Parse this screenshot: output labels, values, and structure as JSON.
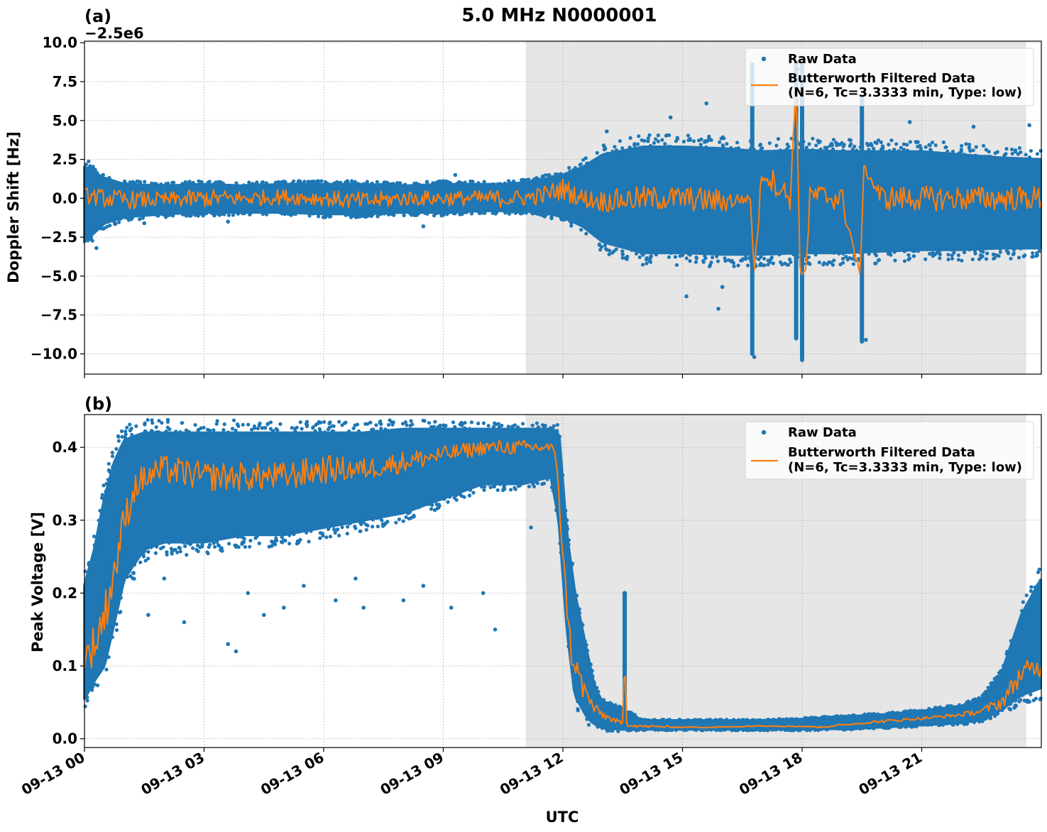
{
  "figure_title": "5.0 MHz N0000001",
  "xlabel": "UTC",
  "x_tick_labels": [
    "09-13 00",
    "09-13 03",
    "09-13 06",
    "09-13 09",
    "09-13 12",
    "09-13 15",
    "09-13 18",
    "09-13 21"
  ],
  "colors": {
    "raw": "#1f77b4",
    "filtered": "#ff7f0e",
    "shade": "#e6e6e6",
    "grid": "#b0b0b0"
  },
  "chart_data": [
    {
      "type": "scatter",
      "panel_label": "(a)",
      "ylabel": "Doppler Shift [Hz]",
      "offset_text": "−2.5e6",
      "x_unit": "hours since 09-13 00:00 UTC",
      "xlim": [
        0,
        24
      ],
      "ylim": [
        -11.3,
        10.1
      ],
      "y_ticks": [
        -10,
        -7.5,
        -5,
        -2.5,
        0,
        2.5,
        5,
        7.5,
        10
      ],
      "y_tick_labels": [
        "−10.0",
        "−7.5",
        "−5.0",
        "−2.5",
        "0.0",
        "2.5",
        "5.0",
        "7.5",
        "10.0"
      ],
      "x_tick_values": [
        0,
        3,
        6,
        9,
        12,
        15,
        18,
        21
      ],
      "grid": true,
      "shaded_region": [
        11.07,
        23.62
      ],
      "legend": {
        "position": "upper right",
        "entries": [
          "Raw Data",
          "Butterworth Filtered Data",
          "(N=6, Tc=3.3333 min, Type: low)"
        ]
      },
      "series": [
        {
          "name": "Raw Data",
          "kind": "band",
          "x": [
            0,
            0.5,
            1,
            2,
            3,
            4,
            5,
            6,
            7,
            8,
            9,
            10,
            10.5,
            11,
            11.5,
            12,
            12.5,
            13,
            14,
            15,
            16,
            17,
            18,
            19,
            20,
            21,
            22,
            23,
            24
          ],
          "upper": [
            2.0,
            1.3,
            0.9,
            0.8,
            0.9,
            0.8,
            0.9,
            0.9,
            0.9,
            0.8,
            0.9,
            0.9,
            0.9,
            1.0,
            1.2,
            1.5,
            2.0,
            2.8,
            3.3,
            3.3,
            3.2,
            3.0,
            3.1,
            3.0,
            3.0,
            3.0,
            2.8,
            2.6,
            2.5
          ],
          "lower": [
            -2.8,
            -1.6,
            -1.2,
            -1.0,
            -0.9,
            -0.9,
            -0.9,
            -1.0,
            -1.0,
            -0.9,
            -0.9,
            -0.8,
            -0.8,
            -0.8,
            -0.9,
            -1.2,
            -1.8,
            -2.8,
            -3.5,
            -3.5,
            -3.6,
            -3.6,
            -3.5,
            -3.5,
            -3.4,
            -3.3,
            -3.3,
            -3.2,
            -3.2
          ],
          "outliers": [
            [
              0.3,
              -3.2
            ],
            [
              1.5,
              -1.6
            ],
            [
              3.6,
              -1.5
            ],
            [
              8.5,
              -1.8
            ],
            [
              9.3,
              1.5
            ],
            [
              13.1,
              4.3
            ],
            [
              14.7,
              5.2
            ],
            [
              15.1,
              -6.3
            ],
            [
              15.6,
              6.1
            ],
            [
              16.0,
              -5.7
            ],
            [
              16.8,
              -10.2
            ],
            [
              17.9,
              8.3
            ],
            [
              18.0,
              -10.4
            ],
            [
              19.6,
              -9.1
            ],
            [
              20.7,
              4.9
            ],
            [
              22.3,
              4.6
            ],
            [
              23.7,
              4.7
            ],
            [
              13.5,
              -3.6
            ],
            [
              15.9,
              -7.1
            ]
          ],
          "spikes": [
            {
              "x": 16.75,
              "low": -10.0,
              "high": 8.6
            },
            {
              "x": 17.85,
              "low": -9.0,
              "high": 8.7
            },
            {
              "x": 18.0,
              "low": -10.3,
              "high": 8.8
            },
            {
              "x": 19.5,
              "low": -9.2,
              "high": 6.5
            }
          ]
        },
        {
          "name": "Butterworth Filtered Data",
          "kind": "line",
          "x": [
            0,
            0.5,
            1,
            2,
            3,
            4,
            5,
            6,
            7,
            8,
            9,
            10,
            10.5,
            11,
            11.5,
            12,
            12.5,
            13,
            14,
            15,
            16,
            16.7,
            16.8,
            17,
            17.7,
            17.85,
            17.95,
            18.1,
            18.2,
            19,
            19.45,
            19.55,
            20,
            21,
            22,
            23,
            24
          ],
          "y": [
            0.2,
            0.0,
            -0.1,
            -0.1,
            0.0,
            0.0,
            0.1,
            0.0,
            -0.2,
            0.0,
            0.0,
            0.0,
            0.0,
            0.0,
            0.2,
            0.6,
            0.0,
            -0.2,
            0.0,
            0.0,
            -0.2,
            0.0,
            -4.8,
            1.8,
            0.0,
            7.5,
            -4.8,
            -4.6,
            0.2,
            0.0,
            -5.0,
            2.0,
            0.0,
            0.0,
            0.0,
            0.0,
            0.0
          ],
          "noise_amplitude": [
            0.5,
            0.6,
            0.6,
            0.5,
            0.6,
            0.5,
            0.5,
            0.5,
            0.6,
            0.5,
            0.5,
            0.5,
            0.6,
            0.5,
            0.6,
            0.7,
            0.6,
            0.7,
            0.8,
            0.8,
            0.8,
            0.2,
            0.2,
            0.8,
            0.8,
            0.2,
            0.2,
            0.2,
            0.8,
            0.8,
            0.2,
            0.2,
            0.8,
            0.8,
            0.8,
            0.8,
            0.8
          ]
        }
      ]
    },
    {
      "type": "scatter",
      "panel_label": "(b)",
      "ylabel": "Peak Voltage [V]",
      "x_unit": "hours since 09-13 00:00 UTC",
      "xlim": [
        0,
        24
      ],
      "ylim": [
        -0.012,
        0.445
      ],
      "y_ticks": [
        0,
        0.1,
        0.2,
        0.3,
        0.4
      ],
      "y_tick_labels": [
        "0.0",
        "0.1",
        "0.2",
        "0.3",
        "0.4"
      ],
      "x_tick_values": [
        0,
        3,
        6,
        9,
        12,
        15,
        18,
        21
      ],
      "grid": true,
      "shaded_region": [
        11.07,
        23.62
      ],
      "legend": {
        "position": "upper right",
        "entries": [
          "Raw Data",
          "Butterworth Filtered Data",
          "(N=6, Tc=3.3333 min, Type: low)"
        ]
      },
      "series": [
        {
          "name": "Raw Data",
          "kind": "band",
          "x": [
            0,
            0.25,
            0.5,
            0.75,
            1,
            1.5,
            2,
            3,
            4,
            5,
            6,
            7,
            8,
            9,
            10,
            11,
            11.7,
            11.9,
            12.1,
            12.3,
            12.6,
            12.8,
            13,
            13.5,
            14,
            15,
            16,
            17,
            18,
            19,
            20,
            21,
            22,
            22.5,
            23,
            23.5,
            24
          ],
          "upper": [
            0.21,
            0.26,
            0.33,
            0.38,
            0.41,
            0.42,
            0.42,
            0.42,
            0.42,
            0.42,
            0.42,
            0.42,
            0.425,
            0.425,
            0.425,
            0.425,
            0.425,
            0.42,
            0.28,
            0.2,
            0.12,
            0.07,
            0.05,
            0.04,
            0.025,
            0.025,
            0.025,
            0.025,
            0.027,
            0.03,
            0.033,
            0.038,
            0.045,
            0.055,
            0.09,
            0.17,
            0.22
          ],
          "lower": [
            0.055,
            0.08,
            0.1,
            0.16,
            0.22,
            0.26,
            0.27,
            0.27,
            0.28,
            0.28,
            0.29,
            0.3,
            0.31,
            0.33,
            0.35,
            0.35,
            0.36,
            0.3,
            0.15,
            0.06,
            0.03,
            0.02,
            0.015,
            0.013,
            0.013,
            0.013,
            0.013,
            0.013,
            0.013,
            0.014,
            0.016,
            0.019,
            0.022,
            0.026,
            0.04,
            0.06,
            0.07
          ],
          "outliers": [
            [
              1.6,
              0.17
            ],
            [
              2.5,
              0.16
            ],
            [
              3.6,
              0.13
            ],
            [
              3.8,
              0.12
            ],
            [
              4.5,
              0.17
            ],
            [
              5.0,
              0.18
            ],
            [
              6.3,
              0.19
            ],
            [
              7.0,
              0.18
            ],
            [
              8.0,
              0.19
            ],
            [
              9.2,
              0.18
            ],
            [
              10.3,
              0.15
            ],
            [
              2.0,
              0.22
            ],
            [
              4.1,
              0.2
            ],
            [
              5.5,
              0.21
            ],
            [
              6.8,
              0.22
            ],
            [
              8.5,
              0.21
            ],
            [
              10.0,
              0.2
            ],
            [
              11.2,
              0.29
            ],
            [
              12.1,
              0.3
            ]
          ],
          "spikes": [
            {
              "x": 13.55,
              "low": 0.015,
              "high": 0.2
            }
          ]
        },
        {
          "name": "Butterworth Filtered Data",
          "kind": "line",
          "x": [
            0,
            0.25,
            0.5,
            0.75,
            1,
            1.3,
            1.6,
            2,
            3,
            4,
            5,
            6,
            7,
            8,
            9,
            10,
            11,
            11.7,
            11.85,
            12,
            12.2,
            12.5,
            12.8,
            13.1,
            13.5,
            13.55,
            13.6,
            14,
            15,
            16,
            17,
            18,
            18.5,
            19,
            20,
            21,
            22,
            22.5,
            23,
            23.5,
            24
          ],
          "y": [
            0.11,
            0.13,
            0.17,
            0.23,
            0.3,
            0.35,
            0.36,
            0.37,
            0.36,
            0.36,
            0.36,
            0.37,
            0.37,
            0.38,
            0.39,
            0.4,
            0.4,
            0.4,
            0.38,
            0.25,
            0.12,
            0.07,
            0.04,
            0.03,
            0.02,
            0.12,
            0.02,
            0.017,
            0.016,
            0.016,
            0.018,
            0.017,
            0.016,
            0.019,
            0.024,
            0.028,
            0.033,
            0.038,
            0.05,
            0.09,
            0.1
          ],
          "noise_amplitude": [
            0.02,
            0.03,
            0.03,
            0.03,
            0.025,
            0.02,
            0.02,
            0.02,
            0.02,
            0.02,
            0.02,
            0.02,
            0.015,
            0.015,
            0.012,
            0.01,
            0.01,
            0.008,
            0.008,
            0.015,
            0.02,
            0.015,
            0.008,
            0.005,
            0.003,
            0.0,
            0.003,
            0.002,
            0.001,
            0.001,
            0.001,
            0.001,
            0.001,
            0.001,
            0.002,
            0.002,
            0.003,
            0.004,
            0.01,
            0.015,
            0.015
          ]
        }
      ]
    }
  ]
}
